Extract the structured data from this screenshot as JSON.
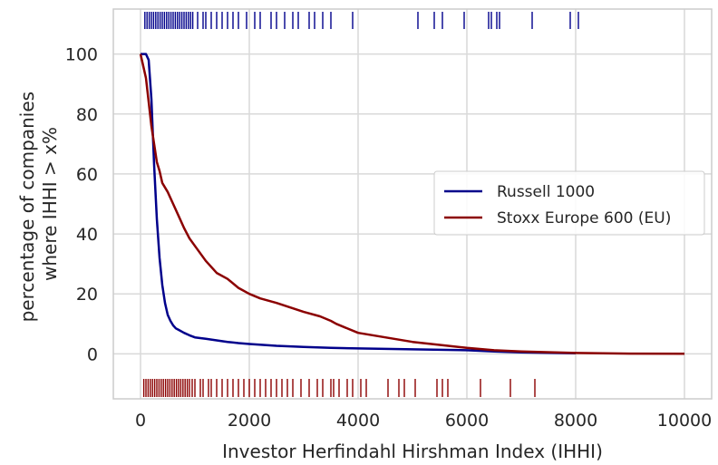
{
  "chart_data": {
    "type": "line",
    "xlabel": "Investor Herfindahl Hirshman Index (IHHI)",
    "ylabel_lines": [
      "percentage of companies",
      "where IHHI > x%"
    ],
    "xlim": [
      -500,
      10500
    ],
    "ylim": [
      -15,
      115
    ],
    "xticks": [
      0,
      2000,
      4000,
      6000,
      8000,
      10000
    ],
    "yticks": [
      0,
      20,
      40,
      60,
      80,
      100
    ],
    "grid": true,
    "legend_position": "center-right",
    "series": [
      {
        "name": "Russell 1000",
        "color": "#00008b",
        "x": [
          0,
          50,
          100,
          150,
          200,
          250,
          300,
          350,
          400,
          450,
          500,
          550,
          600,
          650,
          700,
          800,
          900,
          1000,
          1200,
          1400,
          1600,
          1800,
          2000,
          2500,
          3000,
          3500,
          4000,
          5000,
          6000,
          6500,
          7000,
          8000
        ],
        "y": [
          100,
          100,
          100,
          98,
          85,
          63,
          45,
          32,
          23,
          17,
          13,
          11,
          9.5,
          8.5,
          8,
          7,
          6.2,
          5.5,
          5,
          4.5,
          4,
          3.6,
          3.3,
          2.7,
          2.3,
          2,
          1.8,
          1.5,
          1.2,
          0.8,
          0.5,
          0.2
        ],
        "rug": [
          80,
          120,
          160,
          200,
          240,
          280,
          320,
          360,
          400,
          440,
          480,
          520,
          560,
          600,
          640,
          680,
          720,
          760,
          800,
          840,
          880,
          920,
          960,
          1050,
          1150,
          1200,
          1300,
          1400,
          1500,
          1600,
          1700,
          1800,
          1950,
          2100,
          2200,
          2400,
          2500,
          2650,
          2800,
          2900,
          3100,
          3200,
          3350,
          3500,
          3900,
          5100,
          5400,
          5550,
          5950,
          6400,
          6450,
          6550,
          6600,
          7200,
          7900,
          8050
        ]
      },
      {
        "name": "Stoxx Europe 600 (EU)",
        "color": "#8b0000",
        "x": [
          0,
          50,
          100,
          150,
          200,
          250,
          300,
          350,
          400,
          500,
          600,
          700,
          800,
          900,
          1000,
          1200,
          1400,
          1600,
          1800,
          2000,
          2200,
          2500,
          3000,
          3300,
          3500,
          3600,
          4000,
          4500,
          5000,
          5500,
          6000,
          6500,
          7000,
          8000,
          9000,
          10000
        ],
        "y": [
          100,
          96,
          92,
          84,
          76,
          70,
          64,
          61,
          57,
          54,
          50,
          46,
          42,
          38.5,
          36,
          31,
          27,
          25,
          22,
          20,
          18.5,
          17,
          14,
          12.5,
          11,
          10,
          7,
          5.5,
          4,
          3,
          2,
          1.2,
          0.8,
          0.3,
          0.1,
          0.05
        ],
        "rug": [
          60,
          100,
          140,
          180,
          220,
          260,
          300,
          340,
          380,
          420,
          460,
          500,
          540,
          580,
          620,
          660,
          700,
          740,
          780,
          820,
          860,
          900,
          950,
          1000,
          1100,
          1150,
          1250,
          1300,
          1400,
          1500,
          1600,
          1700,
          1800,
          1900,
          2000,
          2100,
          2200,
          2300,
          2400,
          2500,
          2600,
          2700,
          2800,
          2950,
          3100,
          3250,
          3350,
          3500,
          3550,
          3650,
          3800,
          3900,
          4050,
          4150,
          4550,
          4750,
          4850,
          5050,
          5450,
          5550,
          5650,
          6250,
          6800,
          7250
        ]
      }
    ]
  }
}
